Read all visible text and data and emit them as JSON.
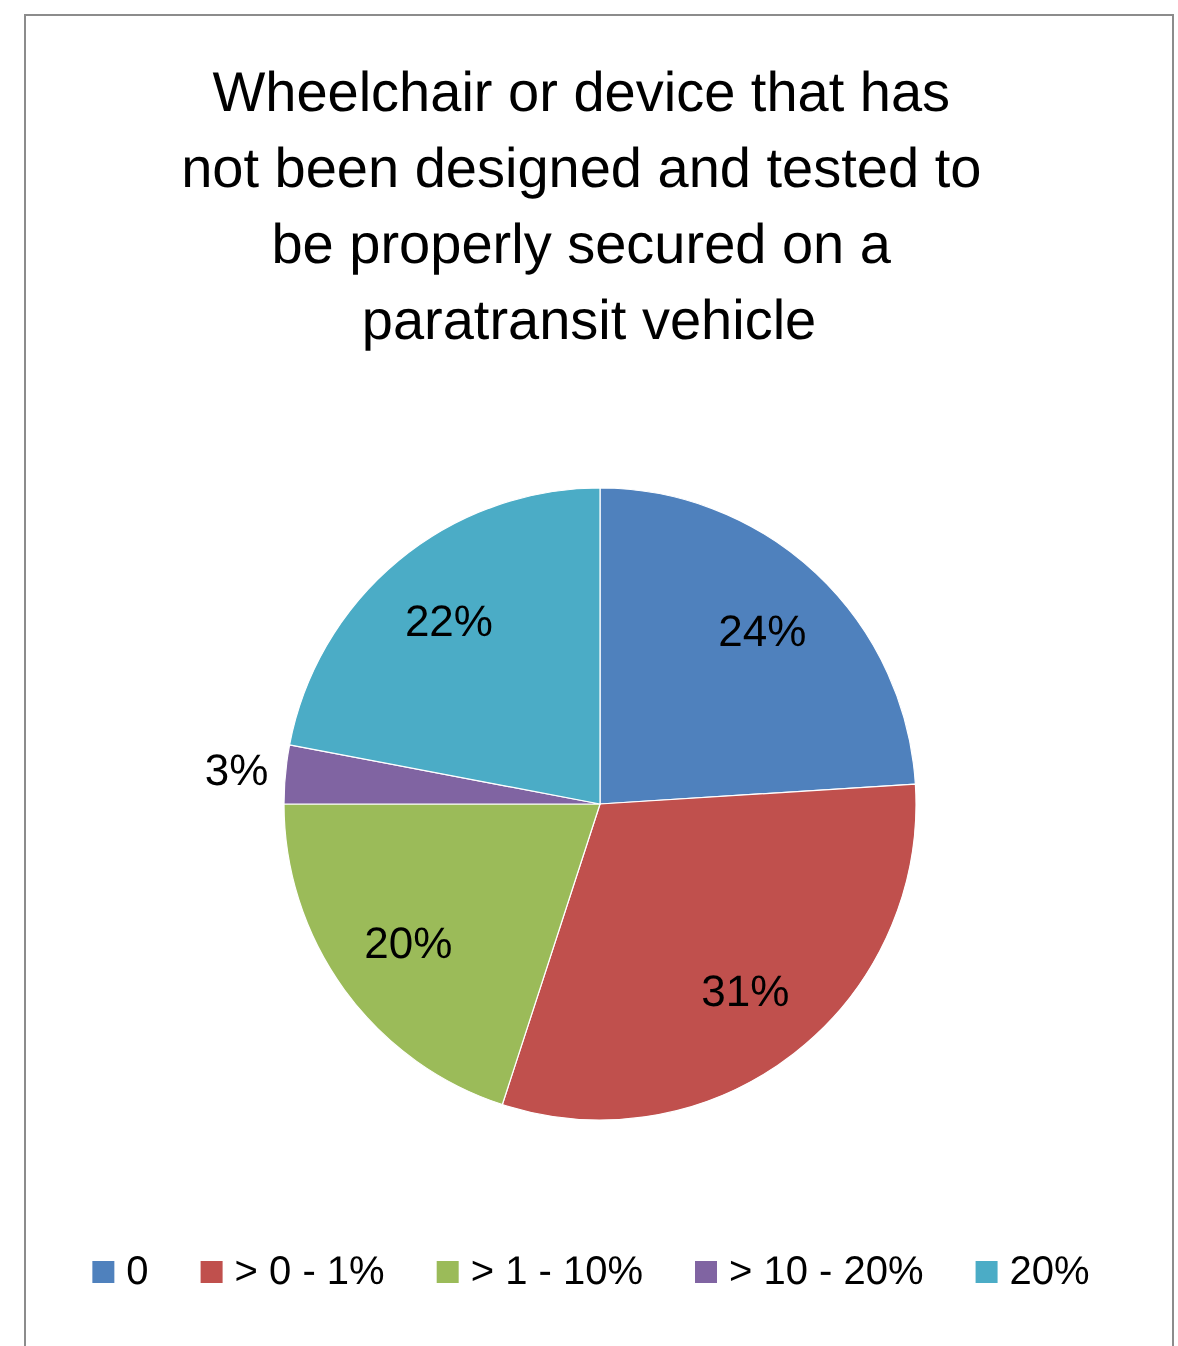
{
  "chart_data": {
    "type": "pie",
    "title": "Wheelchair or device that has not been designed and tested to be properly secured on a paratransit vehicle",
    "categories": [
      "0",
      "> 0 - 1%",
      "> 1 - 10%",
      "> 10 - 20%",
      "20%"
    ],
    "values": [
      24,
      31,
      20,
      3,
      22
    ],
    "colors": [
      "#4f81bd",
      "#c0504d",
      "#9bbb59",
      "#8064a2",
      "#4bacc6"
    ],
    "value_labels": [
      "24%",
      "31%",
      "20%",
      "3%",
      "22%"
    ],
    "legend": "bottom"
  }
}
